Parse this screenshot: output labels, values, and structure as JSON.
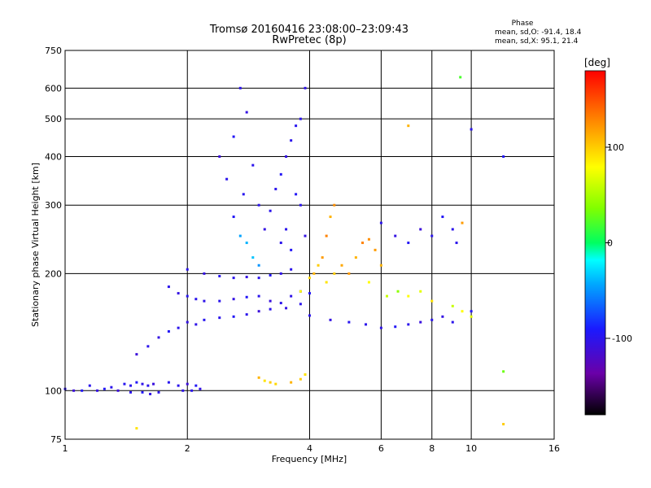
{
  "chart_data": {
    "type": "scatter",
    "title": "Tromsø 20160416 23:08:00–23:09:43",
    "subtitle": "RwPretec (8p)",
    "xlabel": "Frequency [MHz]",
    "ylabel": "Stationary phase Virtual Height [km]",
    "x_scale": "log",
    "y_scale": "log",
    "xlim": [
      1,
      16
    ],
    "ylim": [
      75,
      750
    ],
    "x_ticks": [
      1,
      2,
      4,
      6,
      8,
      10,
      16
    ],
    "y_ticks": [
      75,
      100,
      200,
      300,
      400,
      500,
      600,
      750
    ],
    "grid": true,
    "phase_stats": {
      "title": "Phase",
      "line_o": "mean, sd,O: -91.4, 18.4",
      "line_x": "mean, sd,X:  95.1, 21.4"
    },
    "colorbar": {
      "label": "[deg]",
      "ticks": [
        100,
        0,
        -100
      ],
      "range": [
        -180,
        180
      ]
    },
    "series": [
      {
        "trace": "low-E",
        "points": [
          [
            1.0,
            101,
            -100
          ],
          [
            1.05,
            100,
            -110
          ],
          [
            1.1,
            100,
            -95
          ],
          [
            1.15,
            103,
            -100
          ],
          [
            1.2,
            100,
            -105
          ],
          [
            1.25,
            101,
            -95
          ],
          [
            1.3,
            102,
            -100
          ],
          [
            1.35,
            100,
            -110
          ],
          [
            1.4,
            104,
            -98
          ],
          [
            1.45,
            103,
            -100
          ],
          [
            1.5,
            105,
            -95
          ],
          [
            1.55,
            104,
            -102
          ],
          [
            1.6,
            103,
            -100
          ],
          [
            1.65,
            104,
            -108
          ],
          [
            1.45,
            99,
            -100
          ],
          [
            1.55,
            99,
            -95
          ],
          [
            1.62,
            98,
            -105
          ],
          [
            1.7,
            99,
            -100
          ],
          [
            1.8,
            105,
            -98
          ],
          [
            1.9,
            103,
            -100
          ],
          [
            2.0,
            104,
            -110
          ],
          [
            1.95,
            100,
            -102
          ],
          [
            2.05,
            100,
            -100
          ],
          [
            2.1,
            103,
            -95
          ],
          [
            2.15,
            101,
            -105
          ]
        ]
      },
      {
        "trace": "lower-F",
        "points": [
          [
            1.5,
            124,
            -110
          ],
          [
            1.6,
            130,
            -100
          ],
          [
            1.7,
            137,
            -105
          ],
          [
            1.8,
            142,
            -95
          ],
          [
            1.9,
            145,
            -100
          ],
          [
            2.0,
            150,
            -105
          ],
          [
            2.1,
            148,
            -102
          ],
          [
            2.2,
            152,
            -98
          ],
          [
            2.4,
            154,
            -100
          ],
          [
            2.6,
            155,
            -95
          ],
          [
            2.8,
            157,
            -100
          ],
          [
            3.0,
            160,
            -110
          ],
          [
            3.2,
            162,
            -100
          ],
          [
            3.5,
            163,
            -105
          ],
          [
            3.8,
            167,
            -100
          ],
          [
            4.0,
            156,
            -100
          ],
          [
            4.5,
            152,
            -105
          ],
          [
            5.0,
            150,
            -98
          ],
          [
            5.5,
            148,
            -100
          ],
          [
            6.0,
            145,
            -102
          ],
          [
            6.5,
            146,
            -95
          ],
          [
            7.0,
            148,
            -100
          ],
          [
            7.5,
            150,
            -108
          ],
          [
            8.0,
            152,
            -100
          ],
          [
            8.5,
            155,
            -105
          ],
          [
            9.0,
            150,
            -100
          ],
          [
            10.0,
            160,
            -95
          ]
        ]
      },
      {
        "trace": "middle-F",
        "points": [
          [
            1.8,
            185,
            -100
          ],
          [
            1.9,
            178,
            -105
          ],
          [
            2.0,
            175,
            -98
          ],
          [
            2.1,
            172,
            -100
          ],
          [
            2.2,
            170,
            -102
          ],
          [
            2.4,
            170,
            -100
          ],
          [
            2.6,
            172,
            -105
          ],
          [
            2.8,
            174,
            -95
          ],
          [
            3.0,
            175,
            -100
          ],
          [
            3.2,
            170,
            -108
          ],
          [
            3.4,
            168,
            -100
          ],
          [
            3.6,
            175,
            -102
          ],
          [
            3.8,
            180,
            -98
          ],
          [
            4.0,
            178,
            -95
          ]
        ]
      },
      {
        "trace": "upper-F",
        "points": [
          [
            2.0,
            205,
            -100
          ],
          [
            2.2,
            200,
            -105
          ],
          [
            2.4,
            197,
            -98
          ],
          [
            2.6,
            195,
            -100
          ],
          [
            2.8,
            196,
            -105
          ],
          [
            3.0,
            195,
            -100
          ],
          [
            3.2,
            198,
            -95
          ],
          [
            3.4,
            200,
            -102
          ],
          [
            3.6,
            205,
            -100
          ]
        ]
      },
      {
        "trace": "spread-F-2.5-3MHz",
        "points": [
          [
            2.4,
            400,
            -110
          ],
          [
            2.5,
            350,
            -100
          ],
          [
            2.6,
            450,
            -95
          ],
          [
            2.7,
            600,
            -100
          ],
          [
            2.8,
            520,
            -105
          ],
          [
            2.75,
            320,
            -98
          ],
          [
            2.9,
            380,
            -100
          ],
          [
            2.6,
            280,
            -95
          ],
          [
            2.7,
            250,
            -45
          ],
          [
            2.8,
            240,
            -40
          ],
          [
            2.9,
            220,
            -35
          ],
          [
            3.0,
            210,
            -50
          ],
          [
            3.0,
            300,
            -100
          ],
          [
            3.1,
            260,
            -105
          ],
          [
            3.2,
            290,
            -100
          ]
        ]
      },
      {
        "trace": "spread-F-3-4MHz",
        "points": [
          [
            3.3,
            330,
            -100
          ],
          [
            3.4,
            360,
            -95
          ],
          [
            3.5,
            400,
            -105
          ],
          [
            3.6,
            440,
            -100
          ],
          [
            3.7,
            480,
            -98
          ],
          [
            3.8,
            500,
            -100
          ],
          [
            3.9,
            600,
            -102
          ],
          [
            3.7,
            320,
            -95
          ],
          [
            3.8,
            300,
            -100
          ],
          [
            3.9,
            250,
            -105
          ],
          [
            3.5,
            260,
            -100
          ],
          [
            3.6,
            230,
            -95
          ],
          [
            3.4,
            240,
            -100
          ]
        ]
      },
      {
        "trace": "X-mode-4-6MHz",
        "points": [
          [
            3.8,
            180,
            80
          ],
          [
            4.0,
            195,
            95
          ],
          [
            4.1,
            200,
            110
          ],
          [
            4.2,
            210,
            100
          ],
          [
            4.3,
            220,
            120
          ],
          [
            4.4,
            250,
            130
          ],
          [
            4.5,
            280,
            110
          ],
          [
            4.6,
            300,
            125
          ],
          [
            4.4,
            190,
            90
          ],
          [
            4.6,
            200,
            100
          ],
          [
            4.8,
            210,
            115
          ],
          [
            5.0,
            200,
            120
          ],
          [
            5.2,
            220,
            110
          ],
          [
            5.4,
            240,
            130
          ],
          [
            5.6,
            245,
            125
          ],
          [
            5.8,
            230,
            120
          ],
          [
            6.0,
            210,
            110
          ],
          [
            5.6,
            190,
            80
          ],
          [
            6.2,
            175,
            60
          ],
          [
            6.6,
            180,
            40
          ],
          [
            7.0,
            175,
            80
          ],
          [
            7.5,
            180,
            70
          ],
          [
            8.0,
            170,
            90
          ],
          [
            9.0,
            165,
            60
          ],
          [
            9.5,
            160,
            80
          ],
          [
            10.0,
            155,
            70
          ]
        ]
      },
      {
        "trace": "X-mode-low",
        "points": [
          [
            3.1,
            106,
            90
          ],
          [
            3.2,
            105,
            100
          ],
          [
            3.3,
            104,
            95
          ],
          [
            3.6,
            105,
            110
          ],
          [
            3.8,
            107,
            100
          ],
          [
            3.9,
            110,
            90
          ],
          [
            3.0,
            108,
            110
          ]
        ]
      },
      {
        "trace": "sparse-high",
        "points": [
          [
            6.0,
            270,
            -100
          ],
          [
            6.5,
            250,
            -105
          ],
          [
            7.0,
            240,
            -95
          ],
          [
            7.5,
            260,
            -110
          ],
          [
            8.0,
            250,
            -100
          ],
          [
            8.5,
            280,
            -95
          ],
          [
            9.0,
            260,
            -100
          ],
          [
            9.2,
            240,
            -100
          ],
          [
            9.5,
            270,
            120
          ],
          [
            9.4,
            640,
            20
          ],
          [
            10.0,
            470,
            -100
          ],
          [
            12.0,
            400,
            -95
          ],
          [
            12.0,
            112,
            30
          ],
          [
            12.0,
            82,
            100
          ],
          [
            1.5,
            80,
            90
          ],
          [
            7.0,
            480,
            110
          ]
        ]
      }
    ]
  }
}
